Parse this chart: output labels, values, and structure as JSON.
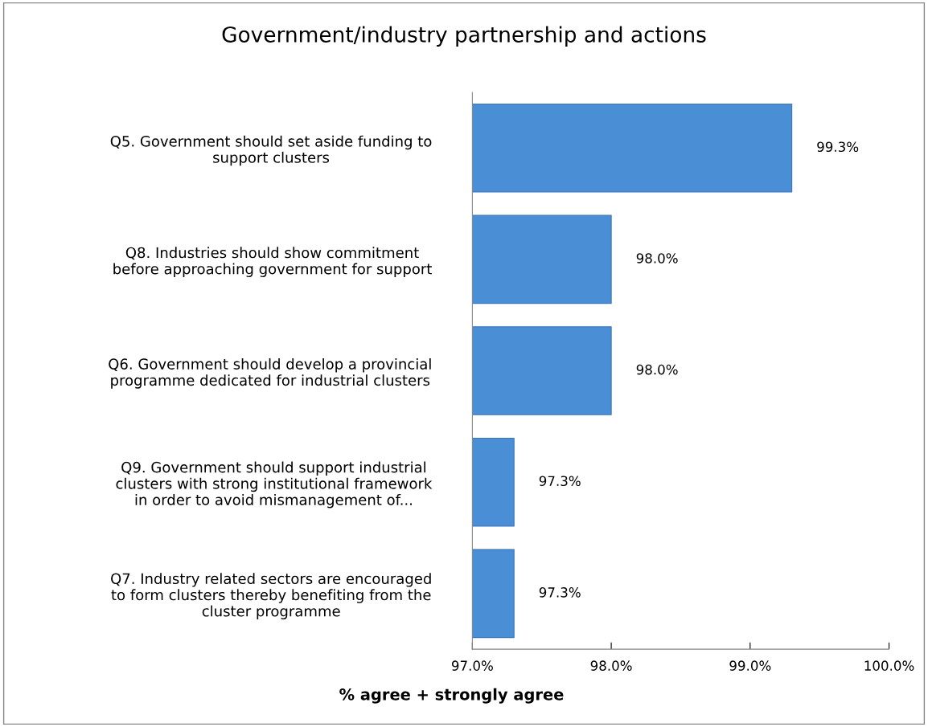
{
  "chart_data": {
    "type": "bar",
    "orientation": "horizontal",
    "title": "Government/industry partnership and actions",
    "xlabel": "% agree + strongly agree",
    "categories": [
      "Q5. Government should set aside funding to\nsupport clusters",
      "Q8. Industries should show commitment\nbefore approaching government for support",
      "Q6. Government should develop a provincial\nprogramme dedicated for industrial clusters",
      "Q9. Government should support industrial\nclusters with strong institutional framework\nin order to avoid mismanagement of...",
      "Q7. Industry related sectors are encouraged\nto form clusters thereby benefiting from the\ncluster programme"
    ],
    "values": [
      99.3,
      98.0,
      98.0,
      97.3,
      97.3
    ],
    "value_labels": [
      "99.3%",
      "98.0%",
      "98.0%",
      "97.3%",
      "97.3%"
    ],
    "color": "#4a8fd6",
    "xlim": [
      97,
      100
    ],
    "xticks": [
      {
        "value": 97,
        "label": "97.0%"
      },
      {
        "value": 98,
        "label": "98.0%"
      },
      {
        "value": 99,
        "label": "99.0%"
      },
      {
        "value": 100,
        "label": "100.0%"
      }
    ],
    "grid": false,
    "legend": false
  }
}
